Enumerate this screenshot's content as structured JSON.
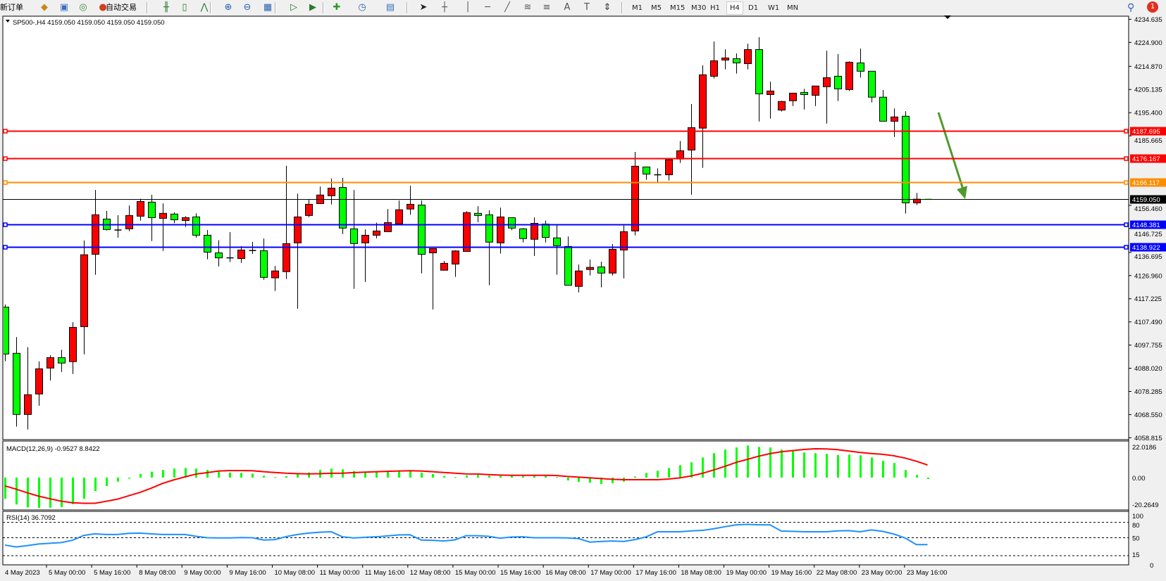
{
  "toolbar": {
    "new_order_label": "新订单",
    "auto_trading_label": "自动交易",
    "icons": [
      "expert-advisors-icon",
      "terminal-icon",
      "signals-icon",
      "auto-trading-icon",
      "bar-chart-icon",
      "candlestick-icon",
      "line-chart-icon",
      "zoom-in-icon",
      "zoom-out-icon",
      "tile-windows-icon",
      "chart-shift-icon",
      "auto-scroll-icon",
      "indicators-icon",
      "periods-icon",
      "templates-icon",
      "cursor-icon",
      "crosshair-icon",
      "vertical-line-icon",
      "horizontal-line-icon",
      "trendline-icon",
      "fibonacci-icon",
      "fibo-fan-icon",
      "text-icon",
      "text-label-icon",
      "arrows-icon"
    ],
    "text_tool": "A",
    "timeframes": [
      "M1",
      "M5",
      "M15",
      "M30",
      "H1",
      "H4",
      "D1",
      "W1",
      "MN"
    ],
    "active_timeframe": "H4",
    "notification_count": "1"
  },
  "chart": {
    "legend": "SP500-,H4  4159.050 4159.050 4159.050 4159.050",
    "price_ticks": [
      "4234.635",
      "4224.900",
      "4214.870",
      "4205.135",
      "4195.400",
      "4185.665",
      "4156.460",
      "4146.725",
      "4136.695",
      "4126.960",
      "4117.225",
      "4107.490",
      "4097.755",
      "4088.020",
      "4078.285",
      "4068.550",
      "4058.815"
    ],
    "levels": [
      {
        "price": 4187.695,
        "label": "4187.695",
        "color": "#ff0000"
      },
      {
        "price": 4176.167,
        "label": "4176.167",
        "color": "#ff0000"
      },
      {
        "price": 4166.117,
        "label": "4166.117",
        "color": "#ff8c00"
      },
      {
        "price": 4148.381,
        "label": "4148.381",
        "color": "#0000ff"
      },
      {
        "price": 4138.922,
        "label": "4138.922",
        "color": "#0000ff"
      }
    ],
    "bid": {
      "price": 4159.05,
      "label": "4159.050",
      "color": "#000000"
    },
    "colors": {
      "bull": "#ff0000",
      "bear": "#00ff00",
      "arrow": "#4f9a2f",
      "macd_hist": "#00ff00",
      "macd_signal": "#ff0000",
      "rsi": "#1e90ff"
    },
    "time_labels": [
      "4 May 2023",
      "5 May 00:00",
      "5 May 16:00",
      "8 May 08:00",
      "9 May 00:00",
      "9 May 16:00",
      "10 May 08:00",
      "11 May 00:00",
      "11 May 16:00",
      "12 May 08:00",
      "15 May 00:00",
      "15 May 16:00",
      "16 May 08:00",
      "17 May 00:00",
      "17 May 16:00",
      "18 May 08:00",
      "19 May 00:00",
      "19 May 16:00",
      "22 May 08:00",
      "23 May 00:00",
      "23 May 16:00"
    ]
  },
  "macd": {
    "label": "MACD(12,26,9) -0.9527 8.8422",
    "ticks": [
      "22.0186",
      "0.00",
      "-20.2649"
    ]
  },
  "rsi": {
    "label": "RSI(14) 36.7092",
    "ticks": [
      "100",
      "80",
      "50",
      "15",
      "0"
    ],
    "levels": [
      80,
      50,
      15
    ]
  },
  "chart_data": {
    "type": "candlestick",
    "symbol": "SP500-",
    "timeframe": "H4",
    "ylim": [
      4058.815,
      4234.635
    ],
    "ohlc": [
      [
        4113.7,
        4114.8,
        4091.0,
        4094.0
      ],
      [
        4094.3,
        4101.1,
        4063.5,
        4068.6
      ],
      [
        4068.6,
        4096.9,
        4062.3,
        4076.9
      ],
      [
        4077.2,
        4090.9,
        4072.3,
        4087.8
      ],
      [
        4088.1,
        4093.5,
        4082.9,
        4092.5
      ],
      [
        4092.5,
        4095.8,
        4086.5,
        4090.2
      ],
      [
        4090.8,
        4107.4,
        4085.6,
        4105.2
      ],
      [
        4105.5,
        4141.7,
        4093.9,
        4135.7
      ],
      [
        4135.9,
        4162.9,
        4127.3,
        4152.5
      ],
      [
        4150.7,
        4154.1,
        4145.9,
        4146.3
      ],
      [
        4146.1,
        4152.3,
        4142.9,
        4146.1
      ],
      [
        4146.6,
        4156.4,
        4145.6,
        4152.2
      ],
      [
        4151.9,
        4159.2,
        4150.0,
        4158.1
      ],
      [
        4157.8,
        4160.9,
        4141.5,
        4151.3
      ],
      [
        4151.0,
        4157.3,
        4137.3,
        4153.1
      ],
      [
        4152.8,
        4153.5,
        4149.0,
        4150.4
      ],
      [
        4150.1,
        4151.9,
        4147.4,
        4151.3
      ],
      [
        4151.6,
        4153.1,
        4142.9,
        4143.9
      ],
      [
        4143.9,
        4146.1,
        4133.8,
        4136.8
      ],
      [
        4136.5,
        4141.8,
        4130.8,
        4134.4
      ],
      [
        4134.4,
        4145.2,
        4132.6,
        4134.4
      ],
      [
        4134.1,
        4139.3,
        4132.3,
        4137.7
      ],
      [
        4137.5,
        4141.1,
        4136.1,
        4137.5
      ],
      [
        4137.4,
        4142.5,
        4125.2,
        4126.2
      ],
      [
        4126.0,
        4131.0,
        4120.5,
        4128.9
      ],
      [
        4128.6,
        4173.1,
        4125.5,
        4140.4
      ],
      [
        4140.7,
        4161.4,
        4113.0,
        4151.6
      ],
      [
        4152.2,
        4158.8,
        4151.5,
        4156.9
      ],
      [
        4157.2,
        4164.4,
        4157.2,
        4160.8
      ],
      [
        4160.5,
        4167.7,
        4156.8,
        4163.7
      ],
      [
        4164.0,
        4168.0,
        4144.4,
        4146.9
      ],
      [
        4146.6,
        4162.9,
        4121.4,
        4140.4
      ],
      [
        4140.7,
        4146.4,
        4124.3,
        4143.9
      ],
      [
        4143.9,
        4149.2,
        4142.6,
        4145.7
      ],
      [
        4145.4,
        4154.9,
        4145.4,
        4149.2
      ],
      [
        4148.7,
        4158.5,
        4148.4,
        4154.6
      ],
      [
        4154.9,
        4164.7,
        4152.5,
        4156.9
      ],
      [
        4156.6,
        4158.5,
        4127.9,
        4135.9
      ],
      [
        4136.5,
        4138.3,
        4112.7,
        4138.3
      ],
      [
        4129.2,
        4133.1,
        4129.2,
        4132.1
      ],
      [
        4131.8,
        4137.6,
        4126.4,
        4137.3
      ],
      [
        4137.1,
        4154.0,
        4137.1,
        4153.4
      ],
      [
        4153.1,
        4156.1,
        4149.4,
        4152.2
      ],
      [
        4152.5,
        4154.4,
        4122.9,
        4141.0
      ],
      [
        4140.7,
        4155.5,
        4136.2,
        4151.6
      ],
      [
        4151.3,
        4151.3,
        4146.0,
        4146.9
      ],
      [
        4146.6,
        4146.9,
        4140.9,
        4142.5
      ],
      [
        4142.2,
        4151.4,
        4135.2,
        4148.9
      ],
      [
        4148.6,
        4150.1,
        4140.9,
        4143.0
      ],
      [
        4142.8,
        4148.6,
        4127.3,
        4139.5
      ],
      [
        4139.2,
        4143.4,
        4122.9,
        4122.9
      ],
      [
        4122.4,
        4131.6,
        4119.9,
        4128.9
      ],
      [
        4129.5,
        4133.7,
        4127.0,
        4130.4
      ],
      [
        4130.6,
        4132.8,
        4122.0,
        4128.0
      ],
      [
        4128.0,
        4140.2,
        4127.0,
        4138.0
      ],
      [
        4137.7,
        4148.2,
        4125.8,
        4145.4
      ],
      [
        4145.7,
        4178.9,
        4143.8,
        4172.9
      ],
      [
        4172.6,
        4172.6,
        4167.2,
        4169.6
      ],
      [
        4169.3,
        4172.0,
        4166.0,
        4169.3
      ],
      [
        4169.3,
        4175.9,
        4166.9,
        4175.6
      ],
      [
        4175.9,
        4183.5,
        4174.3,
        4179.4
      ],
      [
        4179.7,
        4199.0,
        4160.9,
        4189.1
      ],
      [
        4188.9,
        4215.3,
        4172.2,
        4211.3
      ],
      [
        4210.7,
        4225.3,
        4209.8,
        4217.2
      ],
      [
        4217.5,
        4222.0,
        4213.6,
        4218.4
      ],
      [
        4218.1,
        4220.3,
        4211.8,
        4216.3
      ],
      [
        4216.0,
        4224.4,
        4213.6,
        4221.9
      ],
      [
        4221.9,
        4227.1,
        4191.7,
        4203.3
      ],
      [
        4203.0,
        4208.4,
        4192.9,
        4204.5
      ],
      [
        4196.5,
        4200.4,
        4195.9,
        4200.1
      ],
      [
        4200.4,
        4203.6,
        4198.2,
        4203.6
      ],
      [
        4203.9,
        4205.4,
        4196.7,
        4203.0
      ],
      [
        4202.7,
        4206.6,
        4198.2,
        4206.6
      ],
      [
        4206.3,
        4221.4,
        4190.8,
        4210.1
      ],
      [
        4210.7,
        4220.0,
        4200.3,
        4205.4
      ],
      [
        4205.1,
        4217.0,
        4204.5,
        4216.6
      ],
      [
        4216.3,
        4222.3,
        4210.1,
        4212.8
      ],
      [
        4212.8,
        4212.8,
        4199.7,
        4201.9
      ],
      [
        4201.9,
        4204.9,
        4191.8,
        4191.8
      ],
      [
        4191.8,
        4197.2,
        4185.2,
        4193.6
      ],
      [
        4193.9,
        4196.0,
        4153.0,
        4157.5
      ],
      [
        4157.5,
        4161.7,
        4156.6,
        4159.05
      ],
      [
        4159.05,
        4159.05,
        4159.05,
        4159.05
      ]
    ],
    "macd_histogram": [
      -14.8,
      -18.8,
      -20.9,
      -21.2,
      -21.1,
      -20.6,
      -18.6,
      -14.8,
      -9.4,
      -5.9,
      -2.8,
      -0.7,
      2.6,
      4.1,
      5.3,
      6.3,
      6.7,
      6.3,
      5.3,
      4.1,
      3.5,
      3.3,
      2.8,
      1.3,
      0.3,
      1.0,
      2.5,
      3.6,
      5.3,
      6.3,
      5.8,
      4.6,
      3.8,
      3.8,
      4.1,
      4.4,
      4.9,
      3.5,
      2.5,
      1.0,
      0.3,
      1.5,
      1.8,
      1.3,
      1.3,
      1.2,
      1.0,
      1.2,
      1.2,
      0.3,
      -2.0,
      -3.0,
      -3.6,
      -4.4,
      -3.9,
      -2.8,
      0.8,
      3.3,
      4.8,
      6.7,
      8.7,
      10.7,
      14.1,
      17.1,
      19.6,
      21.1,
      22.5,
      21.5,
      21.1,
      19.6,
      18.9,
      17.6,
      17.1,
      16.6,
      15.8,
      16.1,
      15.6,
      14.1,
      11.7,
      10.2,
      5.3,
      1.8,
      -0.9527
    ],
    "macd_signal": [
      -5.8,
      -8.1,
      -10.7,
      -13.0,
      -14.8,
      -16.5,
      -17.6,
      -18.0,
      -18.0,
      -16.6,
      -15.1,
      -12.7,
      -10.4,
      -7.4,
      -4.1,
      -1.6,
      0.5,
      2.5,
      3.5,
      4.6,
      4.9,
      4.9,
      4.8,
      4.1,
      3.6,
      3.1,
      2.8,
      2.6,
      2.8,
      3.0,
      3.1,
      3.5,
      3.8,
      4.1,
      4.4,
      4.6,
      4.8,
      4.6,
      4.1,
      3.6,
      3.1,
      2.6,
      2.5,
      2.1,
      1.8,
      1.6,
      1.6,
      1.6,
      1.6,
      1.5,
      0.8,
      0.3,
      -0.2,
      -0.7,
      -1.2,
      -1.5,
      -1.5,
      -1.5,
      -1.5,
      -1.0,
      -0.2,
      1.2,
      3.0,
      5.4,
      7.9,
      10.7,
      12.8,
      15.0,
      16.8,
      18.1,
      18.9,
      19.7,
      20.2,
      20.1,
      19.6,
      18.6,
      17.6,
      16.9,
      16.3,
      15.3,
      13.7,
      11.5,
      8.8422
    ],
    "macd_range": [
      -20.2649,
      22.0186
    ],
    "rsi_values": [
      35.7,
      32.1,
      34.8,
      37.9,
      39.2,
      40.6,
      45.1,
      54.5,
      57.6,
      56.3,
      56.3,
      58.5,
      59.0,
      57.6,
      56.3,
      56.3,
      56.3,
      52.7,
      50.0,
      49.6,
      49.6,
      50.4,
      50.0,
      45.5,
      46.4,
      52.2,
      56.3,
      59.0,
      60.8,
      61.6,
      51.8,
      49.6,
      50.9,
      51.8,
      53.6,
      55.4,
      55.8,
      45.5,
      45.1,
      43.7,
      45.9,
      54.0,
      54.0,
      52.7,
      49.1,
      51.3,
      51.8,
      50.0,
      50.0,
      50.0,
      49.6,
      48.2,
      41.5,
      42.8,
      43.7,
      42.8,
      46.4,
      51.8,
      61.6,
      61.6,
      61.6,
      63.4,
      64.3,
      67.5,
      71.5,
      75.1,
      76.0,
      75.1,
      75.1,
      63.0,
      62.5,
      61.6,
      61.6,
      61.6,
      63.4,
      63.9,
      61.6,
      65.2,
      62.5,
      57.2,
      49.6,
      36.6,
      36.7092
    ],
    "rsi_range": [
      0,
      100
    ],
    "annotation": {
      "type": "arrow",
      "direction": "down",
      "from_price": 4195.5,
      "to_price": 4159.05
    }
  }
}
